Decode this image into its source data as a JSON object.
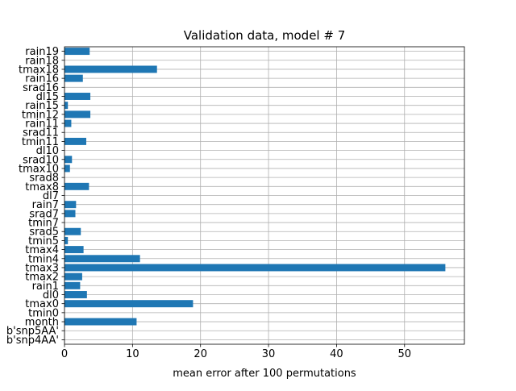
{
  "chart_data": {
    "type": "bar",
    "orientation": "horizontal",
    "title": "Validation data, model # 7",
    "xlabel": "mean error after 100 permutations",
    "ylabel": "",
    "xlim": [
      0,
      58.8
    ],
    "xticks": [
      0,
      10,
      20,
      30,
      40,
      50
    ],
    "grid": true,
    "bar_color": "#1f77b4",
    "categories": [
      "b'snp4AA'",
      "b'snp5AA'",
      "month",
      "tmin0",
      "tmax0",
      "dl0",
      "rain1",
      "tmax2",
      "tmax3",
      "tmin4",
      "tmax4",
      "tmin5",
      "srad5",
      "tmin7",
      "srad7",
      "rain7",
      "dl7",
      "tmax8",
      "srad8",
      "tmax10",
      "srad10",
      "dl10",
      "tmin11",
      "srad11",
      "rain11",
      "tmin12",
      "rain15",
      "dl15",
      "srad16",
      "rain16",
      "tmax18",
      "rain18",
      "rain19"
    ],
    "values": [
      0,
      0,
      10.6,
      0,
      18.9,
      3.3,
      2.3,
      2.6,
      56.0,
      11.1,
      2.8,
      0.5,
      2.4,
      0,
      1.6,
      1.7,
      0,
      3.6,
      0,
      0.8,
      1.1,
      0,
      3.2,
      0,
      1.0,
      3.8,
      0.5,
      3.8,
      0,
      2.7,
      13.6,
      0,
      3.7
    ]
  }
}
